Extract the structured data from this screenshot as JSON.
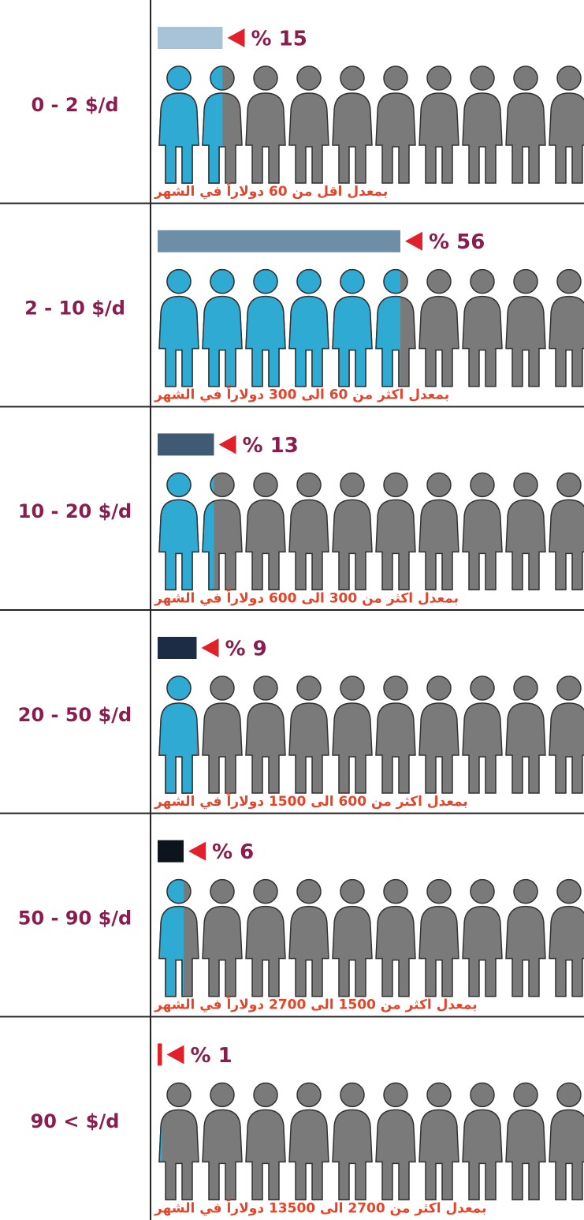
{
  "chart_data": {
    "type": "bar",
    "categories": [
      "0 - 2 $/d",
      "2 - 10 $/d",
      "10 - 20 $/d",
      "20 - 50 $/d",
      "50 - 90 $/d",
      "90 < $/d"
    ],
    "values": [
      15,
      56,
      13,
      9,
      6,
      1
    ],
    "value_labels": [
      "% 15",
      "% 56",
      "% 13",
      "% 9",
      "% 6",
      "% 1"
    ],
    "colors": [
      "#a9c3d6",
      "#6d8ea6",
      "#3f5a72",
      "#1c2c45",
      "#0d141c",
      "#e0202a"
    ],
    "captions": [
      "بمعدل اقل من 60 دولاراً في الشهر",
      "بمعدل اكثر من 60 الى 300 دولاراً في الشهر",
      "بمعدل اكثر من 300 الى 600 دولاراً في الشهر",
      "بمعدل اكثر من 600 الى 1500 دولاراً في الشهر",
      "بمعدل اكثر من 1500 الى 2700 دولاراً في الشهر",
      "بمعدل اكثر من 2700 الى 13500 دولاراً في الشهر"
    ],
    "people_color": "#2eaad3",
    "other_color": "#7a7a7a"
  }
}
